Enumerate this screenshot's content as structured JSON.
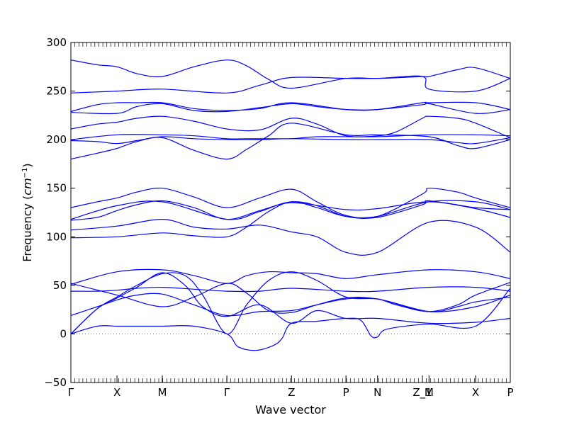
{
  "chart_data": {
    "type": "line",
    "title": "",
    "xlabel": "Wave vector",
    "ylabel_prefix": "Frequency (",
    "ylabel_unit_base": "cm",
    "ylabel_unit_exp": "−1",
    "ylabel_suffix": ")",
    "ylim": [
      -50,
      300
    ],
    "yticks": [
      -50,
      0,
      50,
      100,
      150,
      200,
      250,
      300
    ],
    "xlim": [
      0,
      1
    ],
    "grid": false,
    "legend": "none",
    "zero_line": "dotted",
    "colors": {
      "bands": "#0000ff",
      "zero_line": "#666666",
      "axes": "#000000"
    },
    "high_symmetry_points": [
      {
        "label": "Γ",
        "x": 0.0
      },
      {
        "label": "X",
        "x": 0.105
      },
      {
        "label": "M",
        "x": 0.208
      },
      {
        "label": "Γ",
        "x": 0.355
      },
      {
        "label": "Z",
        "x": 0.502
      },
      {
        "label": "P",
        "x": 0.626
      },
      {
        "label": "N",
        "x": 0.698
      },
      {
        "label": "Z_1",
        "x": 0.8
      },
      {
        "label": "M",
        "x": 0.815
      },
      {
        "label": "X",
        "x": 0.921
      },
      {
        "label": "P",
        "x": 1.0
      }
    ],
    "series": [
      {
        "x": [
          0,
          0.06,
          0.105,
          0.15,
          0.208,
          0.28,
          0.355,
          0.4,
          0.45,
          0.502,
          0.626,
          0.698,
          0.8,
          0.815,
          0.88,
          0.921,
          1.0
        ],
        "values": [
          282,
          277,
          275,
          268,
          265,
          275,
          282,
          276,
          262,
          253,
          263,
          263,
          265,
          265,
          272,
          274,
          263
        ]
      },
      {
        "x": [
          0,
          0.105,
          0.208,
          0.355,
          0.43,
          0.502,
          0.626,
          0.698,
          0.8,
          0.815,
          0.921,
          1.0
        ],
        "values": [
          248,
          250,
          252,
          248,
          256,
          264,
          263,
          263,
          265,
          252,
          250,
          263
        ]
      },
      {
        "x": [
          0,
          0.06,
          0.105,
          0.15,
          0.208,
          0.28,
          0.355,
          0.43,
          0.502,
          0.626,
          0.698,
          0.8,
          0.815,
          0.921,
          1.0
        ],
        "values": [
          229,
          236,
          238,
          238,
          238,
          232,
          230,
          232,
          238,
          231,
          231,
          238,
          238,
          238,
          231
        ]
      },
      {
        "x": [
          0,
          0.105,
          0.15,
          0.208,
          0.28,
          0.355,
          0.43,
          0.502,
          0.56,
          0.626,
          0.698,
          0.8,
          0.815,
          0.921,
          1.0
        ],
        "values": [
          228,
          227,
          234,
          237,
          230,
          229,
          233,
          237,
          234,
          231,
          231,
          236,
          237,
          227,
          231
        ]
      },
      {
        "x": [
          0,
          0.06,
          0.105,
          0.15,
          0.208,
          0.28,
          0.355,
          0.43,
          0.502,
          0.56,
          0.626,
          0.698,
          0.74,
          0.8,
          0.815,
          0.88,
          0.921,
          1.0
        ],
        "values": [
          211,
          216,
          218,
          222,
          224,
          219,
          211,
          210,
          222,
          216,
          204,
          204,
          208,
          222,
          224,
          222,
          217,
          202
        ]
      },
      {
        "x": [
          0,
          0.105,
          0.208,
          0.28,
          0.355,
          0.4,
          0.45,
          0.502,
          0.56,
          0.626,
          0.698,
          0.815,
          0.921,
          1.0
        ],
        "values": [
          200,
          205,
          205,
          204,
          201,
          201,
          201,
          201,
          203,
          203,
          203,
          205,
          205,
          204
        ]
      },
      {
        "x": [
          0,
          0.06,
          0.105,
          0.15,
          0.208,
          0.28,
          0.355,
          0.43,
          0.502,
          0.626,
          0.698,
          0.815,
          0.88,
          0.921,
          1.0
        ],
        "values": [
          199,
          198,
          196,
          199,
          203,
          201,
          200,
          200,
          201,
          200,
          200,
          200,
          197,
          196,
          202
        ]
      },
      {
        "x": [
          0,
          0.06,
          0.105,
          0.15,
          0.208,
          0.28,
          0.355,
          0.4,
          0.45,
          0.502,
          0.626,
          0.698,
          0.815,
          0.88,
          0.921,
          1.0
        ],
        "values": [
          180,
          186,
          191,
          198,
          202,
          189,
          180,
          190,
          204,
          217,
          205,
          205,
          203,
          194,
          191,
          200
        ]
      },
      {
        "x": [
          0,
          0.06,
          0.105,
          0.15,
          0.208,
          0.28,
          0.355,
          0.43,
          0.502,
          0.56,
          0.626,
          0.698,
          0.8,
          0.815,
          0.88,
          0.921,
          1.0
        ],
        "values": [
          130,
          136,
          140,
          146,
          150,
          141,
          130,
          140,
          149,
          136,
          122,
          121,
          144,
          150,
          146,
          140,
          130
        ]
      },
      {
        "x": [
          0,
          0.105,
          0.208,
          0.355,
          0.43,
          0.502,
          0.626,
          0.698,
          0.815,
          0.921,
          1.0
        ],
        "values": [
          118,
          132,
          136,
          118,
          126,
          135,
          128,
          129,
          136,
          130,
          128
        ]
      },
      {
        "x": [
          0,
          0.06,
          0.105,
          0.15,
          0.208,
          0.28,
          0.355,
          0.43,
          0.502,
          0.56,
          0.626,
          0.698,
          0.8,
          0.815,
          0.921,
          1.0
        ],
        "values": [
          117,
          120,
          127,
          133,
          137,
          130,
          118,
          127,
          136,
          132,
          121,
          120,
          133,
          137,
          129,
          120
        ]
      },
      {
        "x": [
          0,
          0.105,
          0.208,
          0.28,
          0.355,
          0.43,
          0.502,
          0.56,
          0.626,
          0.698,
          0.815,
          0.921,
          1.0
        ],
        "values": [
          107,
          111,
          118,
          110,
          108,
          112,
          105,
          100,
          84,
          84,
          115,
          110,
          84
        ]
      },
      {
        "x": [
          0,
          0.105,
          0.208,
          0.28,
          0.355,
          0.4,
          0.45,
          0.502,
          0.56,
          0.626,
          0.698,
          0.815,
          0.921,
          1.0
        ],
        "values": [
          99,
          100,
          104,
          101,
          100,
          110,
          126,
          136,
          130,
          121,
          121,
          136,
          136,
          128
        ]
      },
      {
        "x": [
          0,
          0.105,
          0.208,
          0.28,
          0.355,
          0.4,
          0.45,
          0.502,
          0.56,
          0.626,
          0.698,
          0.815,
          0.921,
          1.0
        ],
        "values": [
          51,
          64,
          66,
          60,
          52,
          60,
          64,
          63,
          62,
          57,
          61,
          66,
          64,
          57
        ]
      },
      {
        "x": [
          0,
          0.06,
          0.105,
          0.15,
          0.208,
          0.28,
          0.355,
          0.43,
          0.502,
          0.626,
          0.698,
          0.815,
          0.921,
          1.0
        ],
        "values": [
          44,
          44,
          45,
          47,
          48,
          46,
          44,
          44,
          47,
          44,
          44,
          48,
          48,
          44
        ]
      },
      {
        "x": [
          0,
          0.105,
          0.208,
          0.28,
          0.355,
          0.4,
          0.45,
          0.502,
          0.56,
          0.626,
          0.698,
          0.815,
          0.921,
          1.0
        ],
        "values": [
          52,
          40,
          28,
          38,
          52,
          42,
          24,
          22,
          30,
          37,
          36,
          23,
          28,
          40
        ]
      },
      {
        "x": [
          0,
          0.06,
          0.105,
          0.15,
          0.208,
          0.28,
          0.355,
          0.43,
          0.502,
          0.56,
          0.626,
          0.698,
          0.815,
          0.88,
          0.921,
          1.0
        ],
        "values": [
          19,
          28,
          35,
          40,
          41,
          30,
          19,
          23,
          24,
          30,
          36,
          36,
          23,
          28,
          33,
          38
        ]
      },
      {
        "x": [
          0,
          0.06,
          0.105,
          0.15,
          0.208,
          0.28,
          0.355,
          0.38,
          0.42,
          0.46,
          0.48,
          0.502,
          0.56,
          0.626,
          0.66,
          0.683,
          0.698,
          0.72,
          0.815,
          0.921,
          1.0
        ],
        "values": [
          0,
          8,
          8,
          8,
          8,
          8,
          0,
          -13,
          -17,
          -12,
          -5,
          11,
          13,
          16,
          14,
          -2,
          -3,
          5,
          10,
          8,
          47
        ]
      },
      {
        "x": [
          0,
          0.06,
          0.105,
          0.15,
          0.208,
          0.26,
          0.3,
          0.355,
          0.4,
          0.45,
          0.502,
          0.56,
          0.626,
          0.698,
          0.74,
          0.815,
          0.88,
          0.921,
          1.0
        ],
        "values": [
          0,
          26,
          38,
          50,
          62,
          60,
          40,
          0,
          30,
          55,
          64,
          55,
          38,
          36,
          30,
          23,
          30,
          40,
          53
        ]
      },
      {
        "x": [
          0,
          0.06,
          0.105,
          0.15,
          0.208,
          0.26,
          0.3,
          0.355,
          0.43,
          0.502,
          0.56,
          0.626,
          0.698,
          0.815,
          0.921,
          1.0
        ],
        "values": [
          0,
          26,
          37,
          48,
          63,
          50,
          28,
          18,
          30,
          11,
          24,
          16,
          16,
          11,
          12,
          16
        ]
      }
    ]
  }
}
